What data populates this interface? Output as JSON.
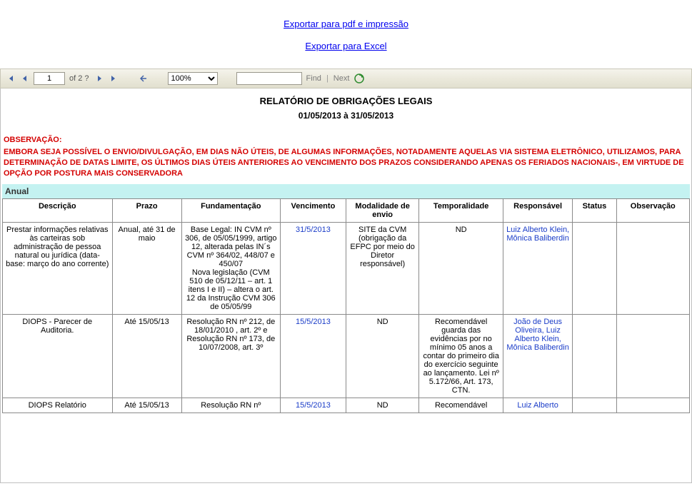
{
  "export": {
    "pdf_label": "Exportar para pdf e impressão",
    "excel_label": "Exportar para Excel"
  },
  "toolbar": {
    "page_current": "1",
    "page_of_label": "of 2 ?",
    "zoom_value": "100%",
    "find_label": "Find",
    "next_label": "Next",
    "colors": {
      "nav_icon": "#4263a8",
      "bg_top": "#f5f4ec",
      "bg_bottom": "#e1dfcf",
      "border": "#c9c7b8"
    }
  },
  "report": {
    "title": "RELATÓRIO DE OBRIGAÇÕES LEGAIS",
    "date_range": "01/05/2013 à 31/05/2013",
    "obs_title": "OBSERVAÇÃO:",
    "obs_body": "EMBORA SEJA POSSÍVEL O ENVIO/DIVULGAÇÃO, EM DIAS NÃO ÚTEIS, DE ALGUMAS INFORMAÇÕES, NOTADAMENTE AQUELAS VIA SISTEMA ELETRÔNICO, UTILIZAMOS, PARA DETERMINAÇÃO DE DATAS LIMITE, OS ÚLTIMOS DIAS ÚTEIS ANTERIORES AO VENCIMENTO DOS PRAZOS CONSIDERANDO APENAS OS FERIADOS NACIONAIS-, EM VIRTUDE DE OPÇÃO POR POSTURA MAIS CONSERVADORA",
    "section_label": "Anual",
    "columns": [
      "Descrição",
      "Prazo",
      "Fundamentação",
      "Vencimento",
      "Modalidade de envio",
      "Temporalidade",
      "Responsável",
      "Status",
      "Observação"
    ],
    "rows": [
      {
        "descricao": "Prestar informações relativas às carteiras sob administração de pessoa natural ou jurídica (data-base: março do ano corrente)",
        "prazo": "Anual, até 31 de maio",
        "fundamentacao": "Base Legal: IN CVM nº 306, de 05/05/1999, artigo 12, alterada pelas IN´s CVM nº 364/02, 448/07 e 450/07\nNova legislação (CVM 510 de 05/12/11 – art. 1 itens I e II) – altera o art. 12 da Instrução CVM 306 de 05/05/99",
        "vencimento": "31/5/2013",
        "modalidade": "SITE da CVM (obrigação da EFPC por meio do Diretor responsável)",
        "temporalidade": "ND",
        "responsavel": "Luiz Alberto Klein, Mônica Baliberdin",
        "status": "",
        "observacao": ""
      },
      {
        "descricao": "DIOPS - Parecer de Auditoria.",
        "prazo": "Até 15/05/13",
        "fundamentacao": "Resolução RN nº 212, de 18/01/2010 , art. 2º e Resolução RN nº 173, de 10/07/2008, art. 3º",
        "vencimento": "15/5/2013",
        "modalidade": "ND",
        "temporalidade": "Recomendável guarda das evidências por no mínimo 05 anos a contar do primeiro dia do exercício seguinte ao lançamento. Lei nº 5.172/66, Art. 173, CTN.",
        "responsavel": "João de Deus Oliveira, Luiz Alberto Klein, Mônica Baliberdin",
        "status": "",
        "observacao": ""
      },
      {
        "descricao": "DIOPS Relatório",
        "prazo": "Até 15/05/13",
        "fundamentacao": "Resolução RN nº",
        "vencimento": "15/5/2013",
        "modalidade": "ND",
        "temporalidade": "Recomendável",
        "responsavel": "Luiz Alberto",
        "status": "",
        "observacao": ""
      }
    ],
    "colors": {
      "warning_text": "#d40000",
      "section_bg": "#c4f2f1",
      "link_blue": "#1a3cc8",
      "table_border": "#8a8a8a"
    }
  }
}
